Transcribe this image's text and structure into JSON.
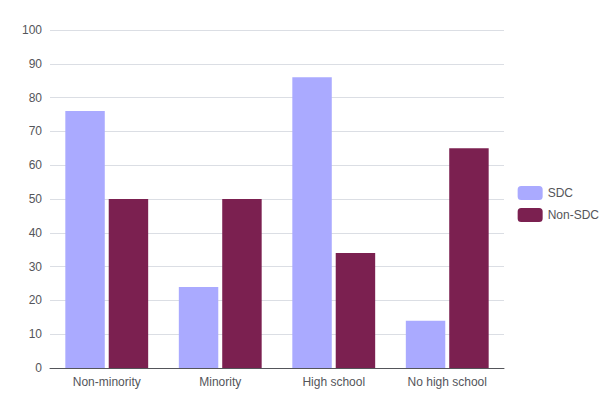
{
  "chart_data": {
    "type": "bar",
    "categories": [
      "Non-minority",
      "Minority",
      "High school",
      "No high school"
    ],
    "series": [
      {
        "name": "SDC",
        "color": "#aaaaff",
        "values": [
          76,
          24,
          86,
          14
        ]
      },
      {
        "name": "Non-SDC",
        "color": "#7b2050",
        "values": [
          50,
          50,
          34,
          65
        ]
      }
    ],
    "ylim": [
      0,
      100
    ],
    "yticks": [
      0,
      10,
      20,
      30,
      40,
      50,
      60,
      70,
      80,
      90,
      100
    ],
    "grid": true,
    "legend": "right"
  }
}
